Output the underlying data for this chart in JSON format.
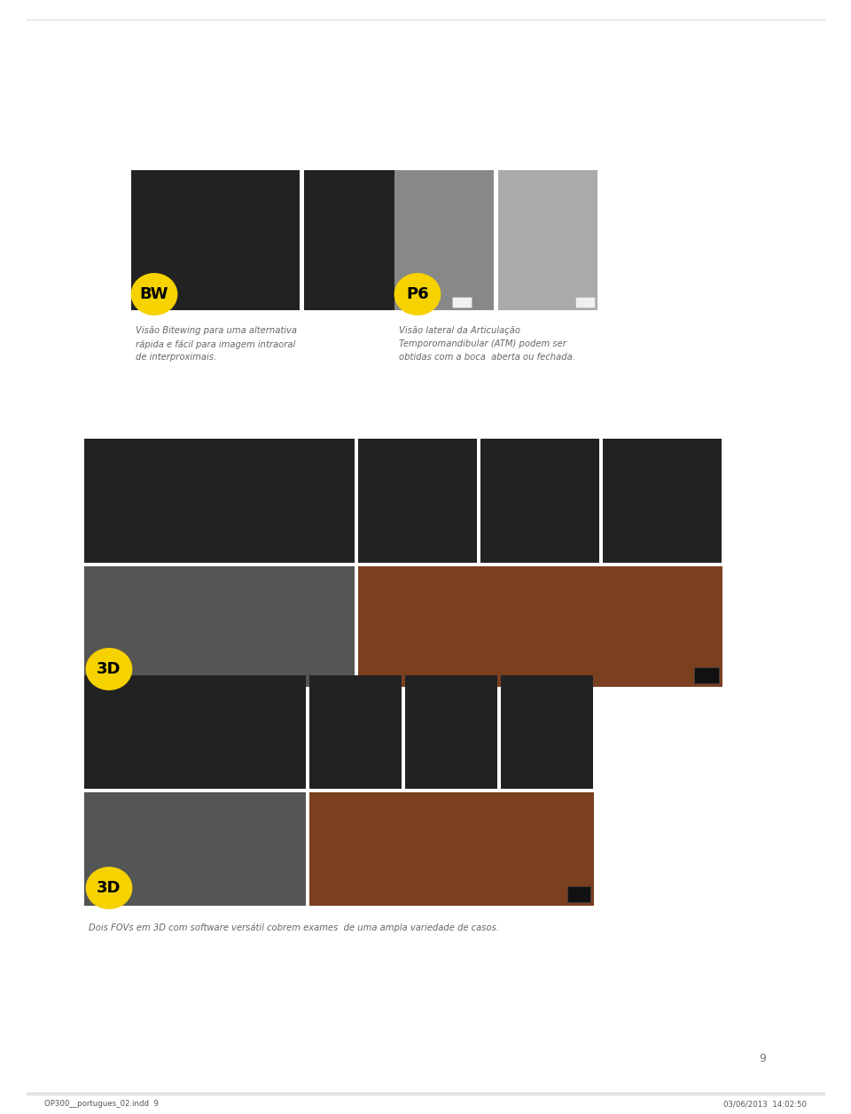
{
  "bg_color": "#ffffff",
  "page_number": "9",
  "footer_left": "OP300__portugues_02.indd  9",
  "footer_right": "03/06/2013  14:02:50",
  "bw_badge": "BW",
  "bw_caption": "Visão Bitewing para uma alternativa\nrápida e fácil para imagem intraoral\nde interproximais.",
  "p6_badge": "P6",
  "p6_caption": "Visão lateral da Articulação\nTemporomandibular (ATM) podem ser\nobtidas com a boca  aberta ou fechada.",
  "badge_color": "#f5d200",
  "badge_text_color": "#000000",
  "label_3d": "3D",
  "caption_bottom": "Dois FOVs em 3D com software versátil cobrem exames  de uma ampla variedade de casos.",
  "gray_dark": "#222222",
  "gray_mid": "#555555",
  "gray_xray": "#888888",
  "gray_light": "#aaaaaa",
  "brown": "#7a4020",
  "caption_color": "#666666"
}
